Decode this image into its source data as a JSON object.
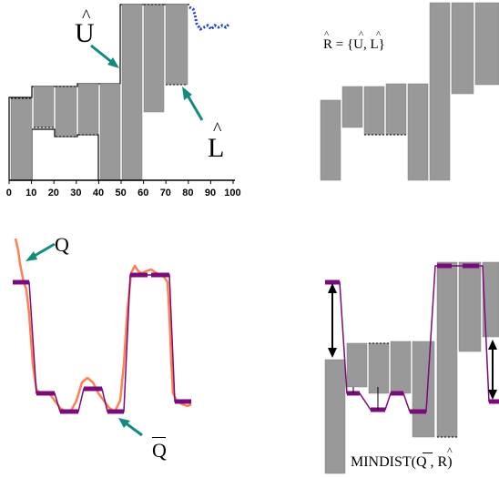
{
  "labels": {
    "U": "U",
    "L": "L",
    "R_eq": "R = {U, L}",
    "Q": "Q",
    "Qbar": "Q",
    "mindist": "MINDIST(Q , R)"
  },
  "x_axis_ticks": [
    "0",
    "10",
    "20",
    "30",
    "40",
    "50",
    "60",
    "70",
    "80",
    "90",
    "100"
  ],
  "colors": {
    "box_fill": "#999999",
    "series_raw": "#ff7f50",
    "series_paa": "#7b0a7b",
    "arrow_teal": "#138b7e",
    "dots_blue": "#1f3fcf"
  },
  "segments": {
    "upper": [
      0.45,
      0.55,
      0.55,
      0.55,
      0.55,
      0.95,
      1.0,
      1.0,
      1.0
    ],
    "lower": [
      -0.35,
      0.2,
      0.15,
      0.15,
      -0.65,
      -0.65,
      0.25,
      0.3,
      0.35
    ]
  },
  "query_paa": [
    0.85,
    0.0,
    -0.25,
    -0.1,
    -0.25,
    0.95,
    0.95,
    0.0
  ]
}
